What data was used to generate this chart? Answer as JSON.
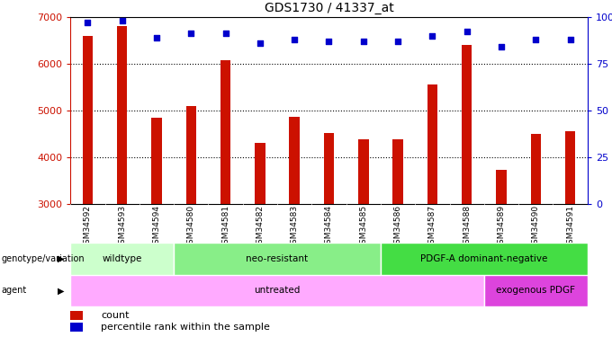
{
  "title": "GDS1730 / 41337_at",
  "samples": [
    "GSM34592",
    "GSM34593",
    "GSM34594",
    "GSM34580",
    "GSM34581",
    "GSM34582",
    "GSM34583",
    "GSM34584",
    "GSM34585",
    "GSM34586",
    "GSM34587",
    "GSM34588",
    "GSM34589",
    "GSM34590",
    "GSM34591"
  ],
  "counts": [
    6600,
    6800,
    4850,
    5100,
    6070,
    4300,
    4870,
    4520,
    4380,
    4380,
    5550,
    6400,
    3720,
    4500,
    4550
  ],
  "percentiles": [
    97,
    98,
    89,
    91,
    91,
    86,
    88,
    87,
    87,
    87,
    90,
    92,
    84,
    88,
    88
  ],
  "ylim_left": [
    3000,
    7000
  ],
  "ylim_right": [
    0,
    100
  ],
  "yticks_left": [
    3000,
    4000,
    5000,
    6000,
    7000
  ],
  "yticks_right": [
    0,
    25,
    50,
    75,
    100
  ],
  "bar_color": "#cc1100",
  "dot_color": "#0000cc",
  "bg_color": "#ffffff",
  "genotype_groups": [
    {
      "label": "wildtype",
      "start": 0,
      "end": 3,
      "color": "#ccffcc"
    },
    {
      "label": "neo-resistant",
      "start": 3,
      "end": 9,
      "color": "#88ee88"
    },
    {
      "label": "PDGF-A dominant-negative",
      "start": 9,
      "end": 15,
      "color": "#44dd44"
    }
  ],
  "agent_groups": [
    {
      "label": "untreated",
      "start": 0,
      "end": 12,
      "color": "#ffaaff"
    },
    {
      "label": "exogenous PDGF",
      "start": 12,
      "end": 15,
      "color": "#dd44dd"
    }
  ],
  "tick_color_left": "#cc1100",
  "tick_color_right": "#0000cc",
  "legend_items": [
    {
      "color": "#cc1100",
      "label": "count"
    },
    {
      "color": "#0000cc",
      "label": "percentile rank within the sample"
    }
  ],
  "grid_yticks": [
    4000,
    5000,
    6000
  ],
  "bar_width": 0.3
}
